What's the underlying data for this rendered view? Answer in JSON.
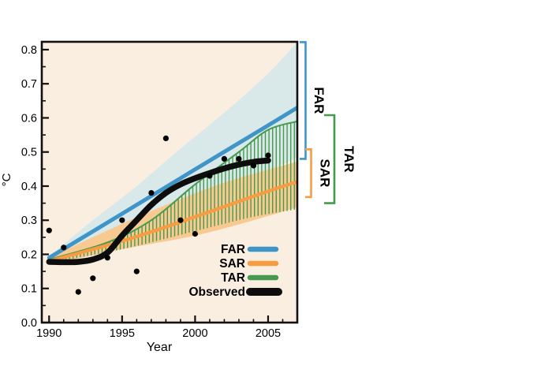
{
  "chart_data": {
    "type": "line",
    "title": "",
    "xlabel": "Year",
    "ylabel": "°C",
    "xlim": [
      1989.5,
      2007
    ],
    "ylim": [
      0,
      0.823
    ],
    "grid": false,
    "plot_background_color": "#faeee0",
    "axis_color": "#111111",
    "x_major_ticks": [
      1990,
      1995,
      2000,
      2005
    ],
    "x_tick_labels": [
      "1990",
      "1995",
      "2000",
      "2005"
    ],
    "x_minor_tick_step_years": 1,
    "y_major_ticks": [
      0,
      0.1,
      0.2,
      0.3,
      0.4,
      0.5,
      0.6,
      0.7,
      0.8
    ],
    "y_tick_labels": [
      "0.0",
      "0.1",
      "0.2",
      "0.3",
      "0.4",
      "0.5",
      "0.6",
      "0.7",
      "0.8"
    ],
    "y_minor_tick_step": 0.05,
    "series": [
      {
        "id": "far_band",
        "name": "FAR projection range",
        "kind": "band",
        "color": "#d9e8e8",
        "upper": [
          [
            1990,
            0.195
          ],
          [
            1993,
            0.3
          ],
          [
            1996,
            0.4
          ],
          [
            1999,
            0.51
          ],
          [
            2002,
            0.615
          ],
          [
            2005,
            0.73
          ],
          [
            2007,
            0.822
          ]
        ],
        "lower": [
          [
            1990,
            0.175
          ],
          [
            1995,
            0.245
          ],
          [
            2000,
            0.32
          ],
          [
            2004,
            0.42
          ],
          [
            2007,
            0.485
          ]
        ]
      },
      {
        "id": "sar_band",
        "name": "SAR projection range",
        "kind": "band",
        "color": "#f8ca92",
        "upper": [
          [
            1990,
            0.19
          ],
          [
            1994,
            0.27
          ],
          [
            1998,
            0.345
          ],
          [
            2002,
            0.41
          ],
          [
            2007,
            0.472
          ]
        ],
        "lower": [
          [
            1990,
            0.17
          ],
          [
            1995,
            0.215
          ],
          [
            2000,
            0.255
          ],
          [
            2004,
            0.3
          ],
          [
            2007,
            0.338
          ]
        ]
      },
      {
        "id": "tar_band",
        "name": "TAR projection range",
        "kind": "hatched-band",
        "color": "#459a4e",
        "upper": [
          [
            1990,
            0.185
          ],
          [
            1994,
            0.235
          ],
          [
            1997,
            0.3
          ],
          [
            2000,
            0.405
          ],
          [
            2003,
            0.5
          ],
          [
            2005,
            0.565
          ],
          [
            2007,
            0.59
          ]
        ],
        "lower": [
          [
            1990,
            0.175
          ],
          [
            1995,
            0.215
          ],
          [
            2000,
            0.268
          ],
          [
            2004,
            0.31
          ],
          [
            2007,
            0.332
          ]
        ]
      },
      {
        "id": "sar_line",
        "name": "SAR",
        "kind": "line",
        "color": "#f89c42",
        "width": 4.3,
        "points": [
          [
            1990,
            0.18
          ],
          [
            1993,
            0.215
          ],
          [
            1996,
            0.252
          ],
          [
            1999,
            0.295
          ],
          [
            2002,
            0.34
          ],
          [
            2005,
            0.385
          ],
          [
            2007,
            0.413
          ]
        ]
      },
      {
        "id": "far_line",
        "name": "FAR",
        "kind": "line",
        "color": "#3f95c8",
        "width": 5,
        "points": [
          [
            1990,
            0.19
          ],
          [
            1995,
            0.319
          ],
          [
            2000,
            0.449
          ],
          [
            2005,
            0.578
          ],
          [
            2007,
            0.63
          ]
        ]
      },
      {
        "id": "observed_line",
        "name": "Observed (smoothed)",
        "kind": "line",
        "color": "#0d0d0d",
        "width": 7.5,
        "points": [
          [
            1990,
            0.178
          ],
          [
            1991,
            0.177
          ],
          [
            1992,
            0.178
          ],
          [
            1993,
            0.185
          ],
          [
            1994,
            0.205
          ],
          [
            1995,
            0.255
          ],
          [
            1996,
            0.3
          ],
          [
            1997,
            0.345
          ],
          [
            1998,
            0.38
          ],
          [
            1999,
            0.405
          ],
          [
            2000,
            0.423
          ],
          [
            2001,
            0.438
          ],
          [
            2002,
            0.452
          ],
          [
            2003,
            0.463
          ],
          [
            2004,
            0.471
          ],
          [
            2005,
            0.475
          ]
        ]
      },
      {
        "id": "observed_points",
        "name": "Observed (annual)",
        "kind": "scatter",
        "color": "#000000",
        "radius": 3.6,
        "points": [
          [
            1990,
            0.27
          ],
          [
            1991,
            0.22
          ],
          [
            1992,
            0.09
          ],
          [
            1993,
            0.13
          ],
          [
            1994,
            0.19
          ],
          [
            1995,
            0.3
          ],
          [
            1996,
            0.15
          ],
          [
            1997,
            0.38
          ],
          [
            1998,
            0.54
          ],
          [
            1999,
            0.3
          ],
          [
            2000,
            0.26
          ],
          [
            2001,
            0.43
          ],
          [
            2002,
            0.48
          ],
          [
            2003,
            0.48
          ],
          [
            2004,
            0.46
          ],
          [
            2005,
            0.49
          ]
        ]
      }
    ],
    "legend": {
      "position": "inside-bottom-right",
      "items": [
        {
          "label": "FAR",
          "color": "#3f95c8",
          "swatch_width": 6.5
        },
        {
          "label": "SAR",
          "color": "#f89c42",
          "swatch_width": 6.5
        },
        {
          "label": "TAR",
          "color": "#459a4e",
          "swatch_width": 6.5
        },
        {
          "label": "Observed",
          "color": "#0d0d0d",
          "swatch_width": 10
        }
      ]
    },
    "annotations": [
      {
        "label": "FAR",
        "color": "#3f95c8",
        "value_range": [
          0.48,
          0.822
        ]
      },
      {
        "label": "SAR",
        "color": "#f89c42",
        "value_range": [
          0.368,
          0.508
        ]
      },
      {
        "label": "TAR",
        "color": "#459a4e",
        "value_range": [
          0.35,
          0.608
        ]
      }
    ]
  }
}
